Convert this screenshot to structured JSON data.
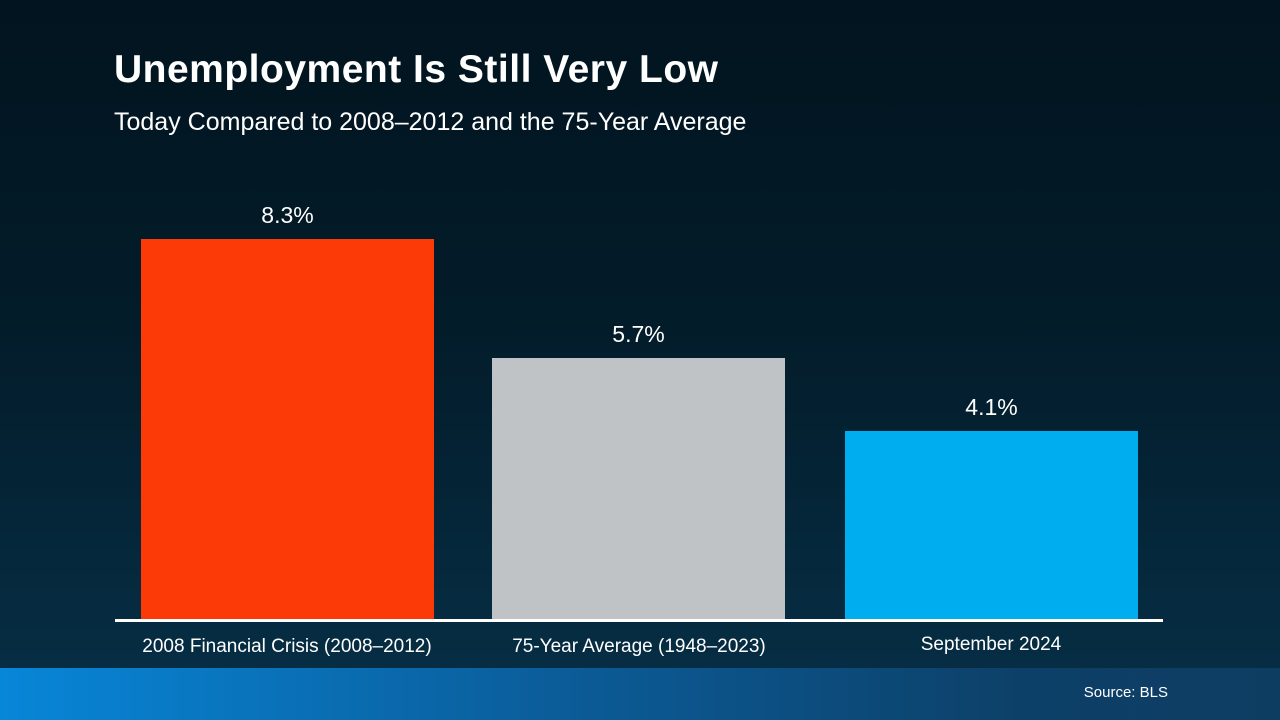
{
  "title": "Unemployment Is Still Very Low",
  "subtitle": "Today Compared to 2008–2012 and the 75-Year Average",
  "source": "Source: BLS",
  "chart_data": {
    "type": "bar",
    "categories": [
      "2008 Financial Crisis (2008–2012)",
      "75-Year Average (1948–2023)",
      "September 2024"
    ],
    "values": [
      8.3,
      5.7,
      4.1
    ],
    "value_labels": [
      "8.3%",
      "5.7%",
      "4.1%"
    ],
    "bar_colors": [
      "#fb3a08",
      "#bfc3c6",
      "#00aeef"
    ],
    "title": "Unemployment Is Still Very Low",
    "xlabel": "",
    "ylabel": "",
    "ylim": [
      0,
      8.3
    ],
    "grid": false,
    "legend": false
  },
  "colors": {
    "background_top": "#02141f",
    "background_bottom": "#073048",
    "footer_gradient_left": "#0886d8",
    "footer_gradient_right": "#0e3d62",
    "baseline": "#ffffff",
    "text": "#ffffff"
  }
}
